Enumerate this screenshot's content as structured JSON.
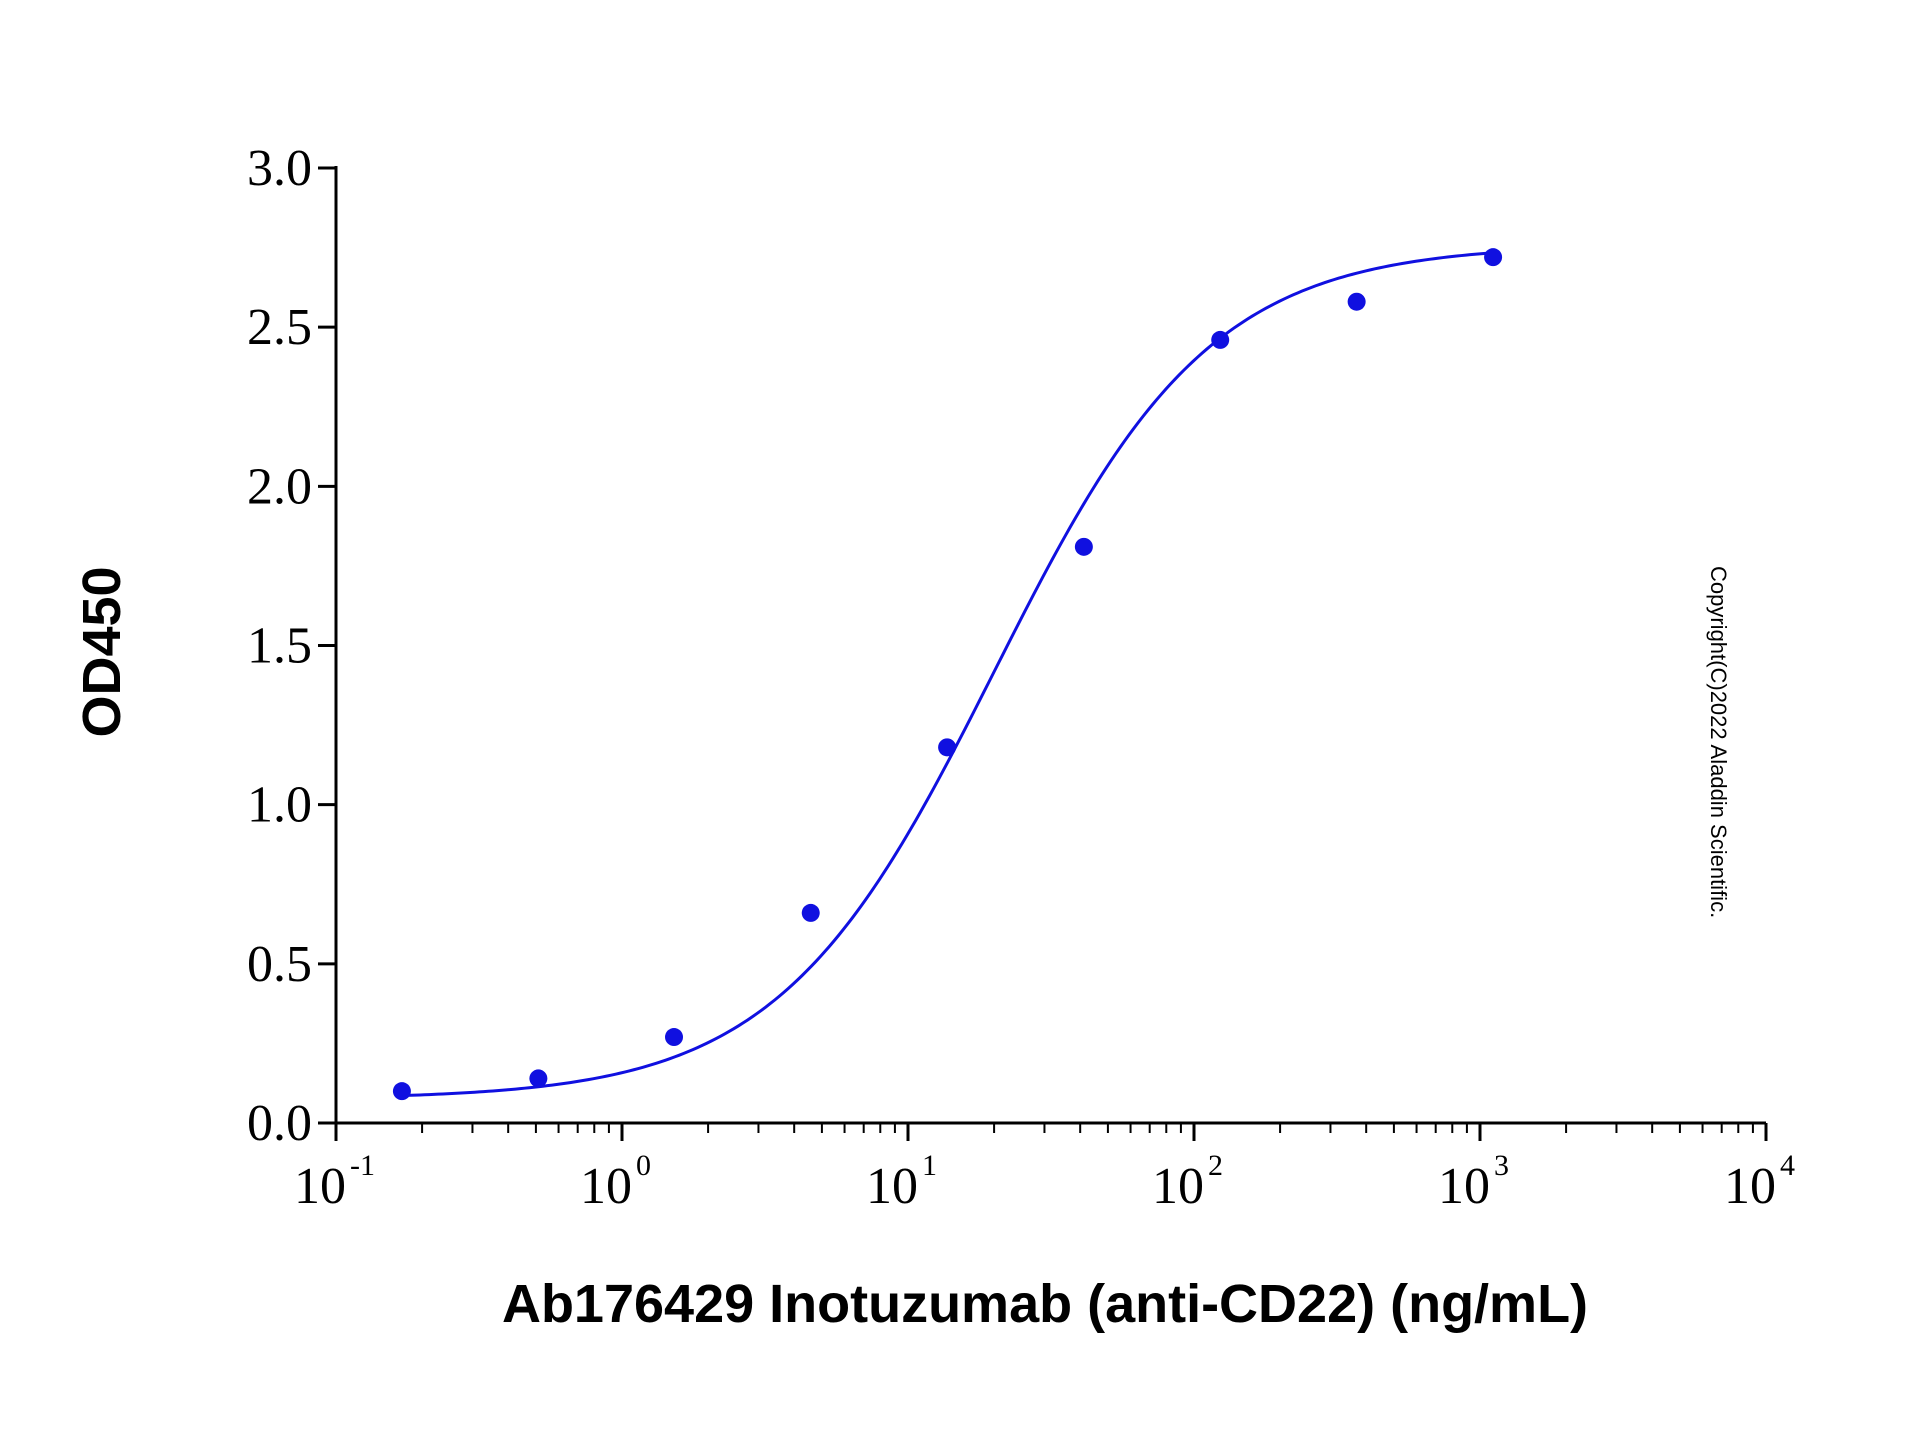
{
  "chart_data": {
    "type": "scatter",
    "title": "",
    "xlabel": "Ab176429 Inotuzumab (anti-CD22) (ng/mL)",
    "ylabel": "OD450",
    "xscale": "log",
    "xlim": [
      0.1,
      10000
    ],
    "ylim": [
      0,
      3.0
    ],
    "x_ticks": [
      {
        "base": "10",
        "exp": "-1",
        "value": 0.1
      },
      {
        "base": "10",
        "exp": "0",
        "value": 1
      },
      {
        "base": "10",
        "exp": "1",
        "value": 10
      },
      {
        "base": "10",
        "exp": "2",
        "value": 100
      },
      {
        "base": "10",
        "exp": "3",
        "value": 1000
      },
      {
        "base": "10",
        "exp": "4",
        "value": 10000
      }
    ],
    "y_ticks": [
      "0.0",
      "0.5",
      "1.0",
      "1.5",
      "2.0",
      "2.5",
      "3.0"
    ],
    "grid": false,
    "legend": "none",
    "series": [
      {
        "color": "#1010e0",
        "points": [
          {
            "x": 0.17,
            "y": 0.1
          },
          {
            "x": 0.51,
            "y": 0.14
          },
          {
            "x": 1.52,
            "y": 0.27
          },
          {
            "x": 4.57,
            "y": 0.66
          },
          {
            "x": 13.7,
            "y": 1.18
          },
          {
            "x": 41.2,
            "y": 1.81
          },
          {
            "x": 123.5,
            "y": 2.46
          },
          {
            "x": 370.4,
            "y": 2.58
          },
          {
            "x": 1111.1,
            "y": 2.72
          }
        ],
        "fit": {
          "model": "4PL",
          "bottom": 0.075,
          "top": 2.76,
          "ec50": 20,
          "hill": 1.15
        }
      }
    ],
    "annotation": "Copyright(C)2022 Aladdin Scientific."
  }
}
